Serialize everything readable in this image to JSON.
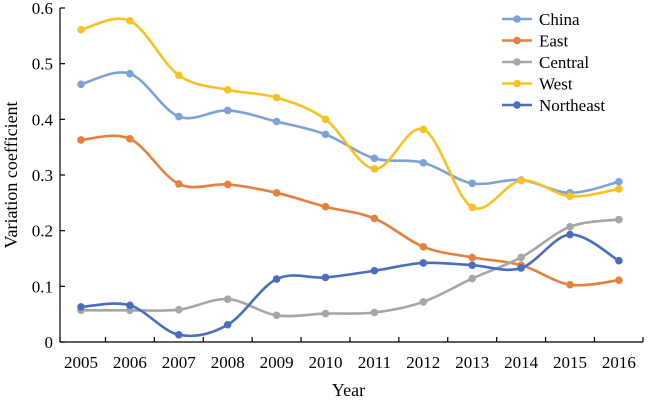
{
  "chart_data": {
    "type": "line",
    "title": "",
    "xlabel": "Year",
    "ylabel": "Variation coefficient",
    "x": [
      "2005",
      "2006",
      "2007",
      "2008",
      "2009",
      "2010",
      "2011",
      "2012",
      "2013",
      "2014",
      "2015",
      "2016"
    ],
    "ylim": [
      0,
      0.6
    ],
    "yticks": [
      "0",
      "0.1",
      "0.2",
      "0.3",
      "0.4",
      "0.5",
      "0.6"
    ],
    "grid": false,
    "legend_position": "top-right",
    "series": [
      {
        "name": "China",
        "color": "#7ea1d8",
        "values": [
          0.463,
          0.482,
          0.405,
          0.416,
          0.396,
          0.373,
          0.33,
          0.322,
          0.285,
          0.291,
          0.268,
          0.288
        ]
      },
      {
        "name": "East",
        "color": "#e5803f",
        "values": [
          0.363,
          0.365,
          0.284,
          0.283,
          0.268,
          0.243,
          0.222,
          0.171,
          0.152,
          0.138,
          0.103,
          0.111
        ]
      },
      {
        "name": "Central",
        "color": "#a6a6a6",
        "values": [
          0.057,
          0.057,
          0.058,
          0.077,
          0.048,
          0.051,
          0.053,
          0.072,
          0.114,
          0.152,
          0.207,
          0.22
        ]
      },
      {
        "name": "West",
        "color": "#f8c124",
        "values": [
          0.561,
          0.577,
          0.479,
          0.453,
          0.439,
          0.4,
          0.311,
          0.382,
          0.242,
          0.29,
          0.262,
          0.275
        ]
      },
      {
        "name": "Northeast",
        "color": "#4b6dbd",
        "values": [
          0.063,
          0.066,
          0.013,
          0.031,
          0.113,
          0.116,
          0.128,
          0.142,
          0.138,
          0.133,
          0.193,
          0.146
        ]
      }
    ]
  }
}
